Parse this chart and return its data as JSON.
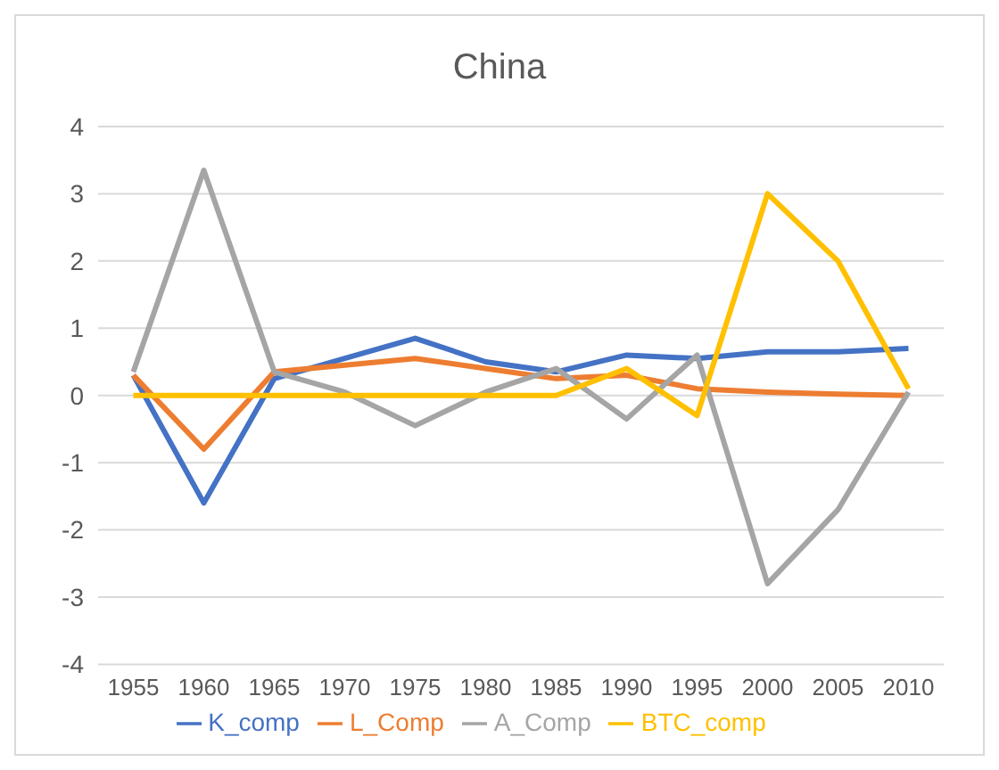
{
  "chart_data": {
    "type": "line",
    "title": "China",
    "categories": [
      "1955",
      "1960",
      "1965",
      "1970",
      "1975",
      "1980",
      "1985",
      "1990",
      "1995",
      "2000",
      "2005",
      "2010"
    ],
    "series": [
      {
        "name": "K_comp",
        "color": "#4472c4",
        "values": [
          0.3,
          -1.6,
          0.25,
          0.55,
          0.85,
          0.5,
          0.35,
          0.6,
          0.55,
          0.65,
          0.65,
          0.7
        ]
      },
      {
        "name": "L_Comp",
        "color": "#ed7d31",
        "values": [
          0.3,
          -0.8,
          0.35,
          0.45,
          0.55,
          0.4,
          0.25,
          0.3,
          0.1,
          0.05,
          0.02,
          0
        ]
      },
      {
        "name": "A_Comp",
        "color": "#a5a5a5",
        "values": [
          0.35,
          3.35,
          0.35,
          0.05,
          -0.45,
          0.05,
          0.4,
          -0.35,
          0.6,
          -2.8,
          -1.7,
          0.05
        ]
      },
      {
        "name": "BTC_comp",
        "color": "#ffc000",
        "values": [
          0,
          0,
          0,
          0,
          0,
          0,
          0,
          0.4,
          -0.3,
          3,
          2,
          0.1
        ]
      }
    ],
    "ylim": [
      -4,
      4
    ],
    "yticks": [
      -4,
      -3,
      -2,
      -1,
      0,
      1,
      2,
      3,
      4
    ],
    "grid": "y",
    "legend": "bottom",
    "marker": "none"
  }
}
